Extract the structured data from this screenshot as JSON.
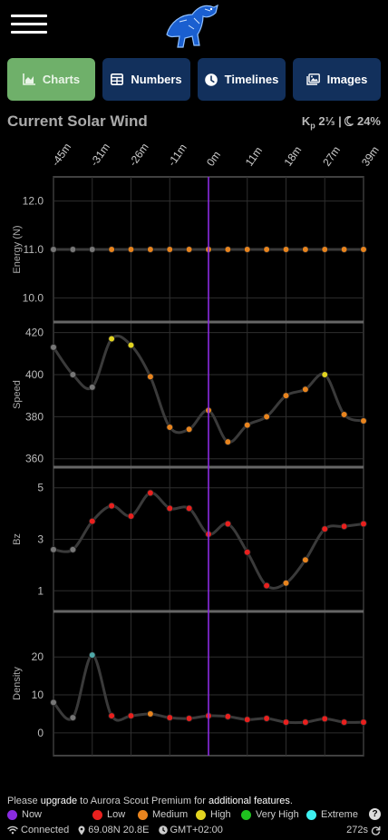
{
  "nav": {
    "menu_icon": "hamburger-menu-icon",
    "logo_icon": "aurora-scout-fox-logo",
    "tabs": [
      {
        "label": "Charts",
        "icon": "area-chart-icon",
        "active": true
      },
      {
        "label": "Numbers",
        "icon": "table-icon",
        "active": false
      },
      {
        "label": "Timelines",
        "icon": "clock-icon",
        "active": false
      },
      {
        "label": "Images",
        "icon": "image-icon",
        "active": false
      }
    ]
  },
  "header": {
    "title": "Current Solar Wind",
    "kp_letter": "K",
    "kp_sub": "p",
    "kp_value": "2⅓",
    "separator": "|",
    "moon_value": "24%"
  },
  "chart_data": {
    "type": "line",
    "x_ticks": [
      "-45m",
      "-31m",
      "-26m",
      "-11m",
      "0m",
      "11m",
      "18m",
      "27m",
      "39m"
    ],
    "now_index": 8,
    "panels": [
      {
        "name": "Energy (N)",
        "ticks": [
          "12.0",
          "11.0",
          "10.0"
        ],
        "ylim": [
          9.5,
          12.5
        ],
        "values": [
          11.0,
          11.0,
          11.0,
          11.0,
          11.0,
          11.0,
          11.0,
          11.0,
          11.0,
          11.0,
          11.0,
          11.0,
          11.0,
          11.0,
          11.0,
          11.0,
          11.0
        ],
        "levels": [
          "gray",
          "gray",
          "gray",
          "medium",
          "medium",
          "medium",
          "medium",
          "medium",
          "medium",
          "medium",
          "medium",
          "medium",
          "medium",
          "medium",
          "medium",
          "medium",
          "medium"
        ]
      },
      {
        "name": "Speed",
        "ticks": [
          "420",
          "400",
          "380",
          "360"
        ],
        "ylim": [
          356,
          425
        ],
        "values": [
          413,
          400,
          394,
          417,
          414,
          399,
          375,
          374,
          383,
          368,
          376,
          380,
          390,
          393,
          400,
          381,
          378
        ],
        "levels": [
          "gray",
          "gray",
          "gray",
          "high",
          "high",
          "medium",
          "medium",
          "medium",
          "medium",
          "medium",
          "medium",
          "medium",
          "medium",
          "medium",
          "high",
          "medium",
          "medium"
        ]
      },
      {
        "name": "Bz",
        "ticks": [
          "5",
          "3",
          "1"
        ],
        "ylim": [
          0.2,
          5.8
        ],
        "values": [
          2.6,
          2.6,
          3.7,
          4.3,
          3.9,
          4.8,
          4.2,
          4.2,
          3.2,
          3.6,
          2.5,
          1.2,
          1.3,
          2.2,
          3.4,
          3.5,
          3.6
        ],
        "levels": [
          "gray",
          "gray",
          "low",
          "low",
          "low",
          "low",
          "low",
          "low",
          "low",
          "low",
          "low",
          "low",
          "medium",
          "medium",
          "low",
          "low",
          "low"
        ]
      },
      {
        "name": "Density",
        "ticks": [
          "20",
          "10",
          "0"
        ],
        "ylim": [
          -6,
          32
        ],
        "values": [
          8,
          4,
          20.5,
          4.5,
          4.5,
          5,
          4,
          3.8,
          4.5,
          4.3,
          3.5,
          3.8,
          2.8,
          2.8,
          3.7,
          2.8,
          2.8
        ],
        "levels": [
          "gray",
          "gray",
          "cyan",
          "low",
          "low",
          "medium",
          "low",
          "low",
          "low",
          "low",
          "low",
          "low",
          "low",
          "low",
          "low",
          "low",
          "low"
        ]
      }
    ]
  },
  "colors": {
    "now": "#8a2be2",
    "low": "#e8201e",
    "medium": "#e8841e",
    "high": "#e2d420",
    "very_high": "#1fc21f",
    "extreme": "#3ef0f0",
    "gray": "#777777",
    "cyan": "#4fa8a8"
  },
  "footer": {
    "upgrade_prefix": "Please",
    "upgrade_link": "upgrade",
    "upgrade_middle": "to Aurora Scout Premium for",
    "upgrade_features": "additional features",
    "upgrade_end": ".",
    "legend": [
      {
        "label": "Now",
        "color": "#8a2be2"
      },
      {
        "label": "Low",
        "color": "#e8201e"
      },
      {
        "label": "Medium",
        "color": "#e8841e"
      },
      {
        "label": "High",
        "color": "#e2d420"
      },
      {
        "label": "Very High",
        "color": "#1fc21f"
      },
      {
        "label": "Extreme",
        "color": "#3ef0f0"
      }
    ],
    "help_label": "?",
    "connection": "Connected",
    "location": "69.08N 20.8E",
    "timezone": "GMT+02:00",
    "countdown": "272s"
  }
}
